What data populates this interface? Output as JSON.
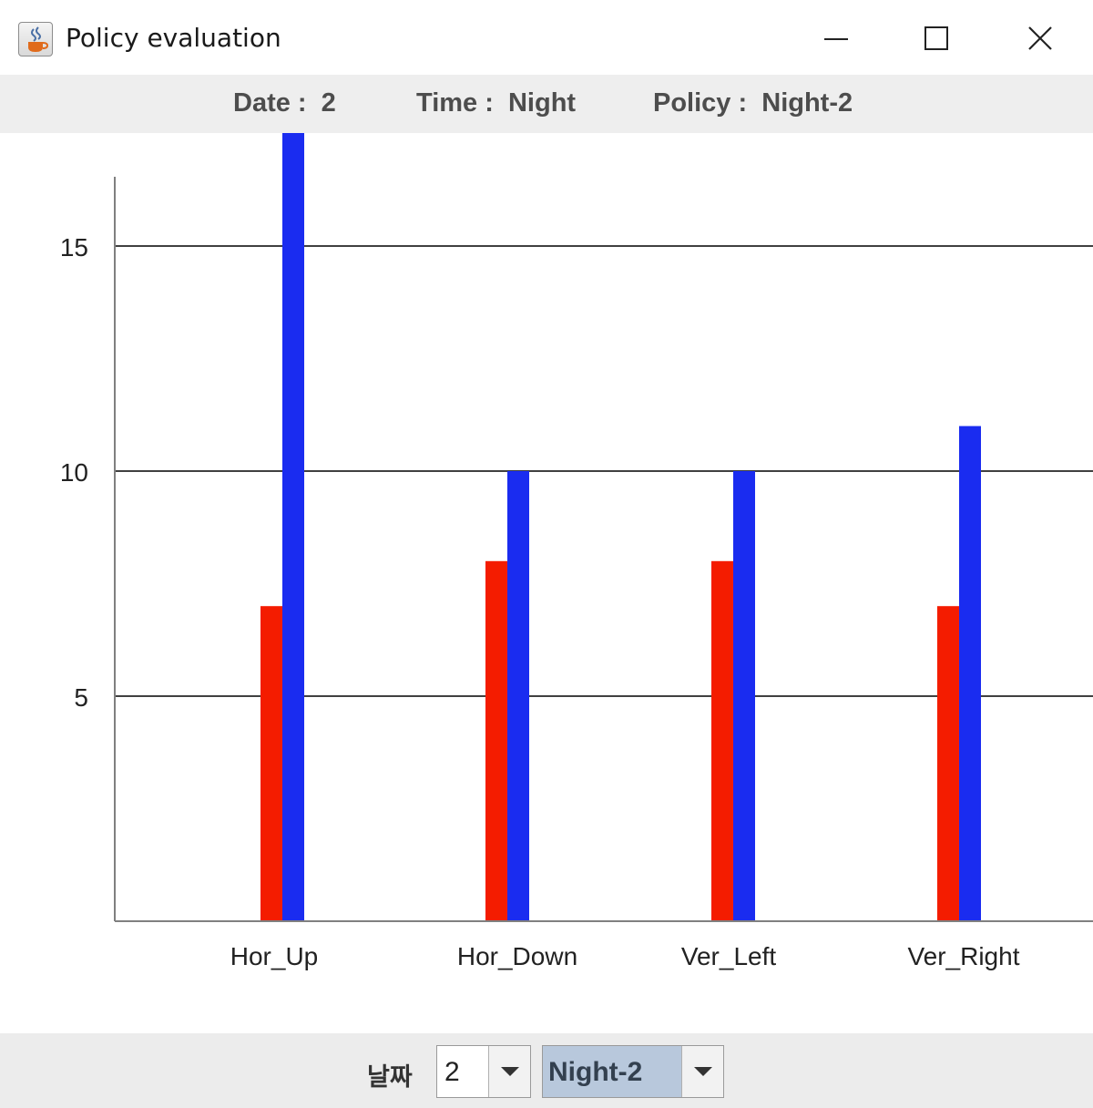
{
  "window": {
    "title": "Policy evaluation",
    "icon": "java-cup-icon"
  },
  "info_bar": {
    "date": "Date :  2",
    "time": "Time :  Night",
    "policy": "Policy :  Night-2"
  },
  "controls": {
    "date_label": "날짜",
    "date_value": "2",
    "policy_value": "Night-2"
  },
  "colors": {
    "series_red": "#f41c00",
    "series_blue": "#1a2cf0",
    "grid": "#000000",
    "axis": "#808080"
  },
  "chart_data": {
    "type": "bar",
    "categories": [
      "Hor_Up",
      "Hor_Down",
      "Ver_Left",
      "Ver_Right"
    ],
    "series": [
      {
        "values": [
          7,
          8,
          8,
          7
        ]
      },
      {
        "values": [
          18,
          10,
          10,
          11
        ]
      }
    ],
    "yticks": [
      "5",
      "10",
      "15"
    ],
    "ylim": [
      0,
      17
    ],
    "grid": true,
    "legend": "none"
  }
}
